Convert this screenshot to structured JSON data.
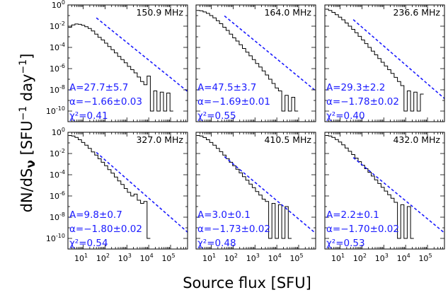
{
  "figure": {
    "xlabel": "Source flux [SFU]",
    "ylabel": "dN/dS_ν [SFU⁻¹ day⁻¹]",
    "ylabel_parts": {
      "a": "dN/dS",
      "nu": "ν",
      "b": " [SFU",
      "e1": "−1",
      "c": " day",
      "e2": "−1",
      "d": "]"
    },
    "x_tick_labels": [
      "10",
      "10",
      "10",
      "10",
      "10"
    ],
    "x_tick_exps": [
      "1",
      "2",
      "3",
      "4",
      "5"
    ],
    "y_tick_labels": [
      "10",
      "10",
      "10",
      "10",
      "10",
      "10"
    ],
    "y_tick_exps": [
      "0",
      "-2",
      "-4",
      "-6",
      "-8",
      "-10"
    ]
  },
  "chart_data": [
    {
      "type": "line",
      "frequency": "150.9 MHz",
      "fit_A": "A=27.7±5.7",
      "fit_alpha": "α=−1.66±0.03",
      "fit_chi2": "χ²=0.41",
      "alpha": -1.66,
      "amp": 27.7,
      "xlim": [
        2,
        600000
      ],
      "ylim": [
        1e-11,
        1
      ],
      "xscale": "log",
      "yscale": "log",
      "hist": [
        [
          2.5,
          0.008
        ],
        [
          3.5,
          0.013
        ],
        [
          5,
          0.016
        ],
        [
          7,
          0.015
        ],
        [
          10,
          0.012
        ],
        [
          14,
          0.009
        ],
        [
          20,
          0.006
        ],
        [
          28,
          0.0035
        ],
        [
          40,
          0.0018
        ],
        [
          56,
          0.0009
        ],
        [
          80,
          0.0005
        ],
        [
          112,
          0.00025
        ],
        [
          158,
          0.00012
        ],
        [
          224,
          6e-05
        ],
        [
          316,
          3e-05
        ],
        [
          447,
          1.4e-05
        ],
        [
          631,
          7e-06
        ],
        [
          891,
          3.5e-06
        ],
        [
          1259,
          1.6e-06
        ],
        [
          1778,
          8e-07
        ],
        [
          2512,
          4e-07
        ],
        [
          3548,
          1.6e-07
        ],
        [
          5012,
          6e-08
        ],
        [
          7079,
          3e-08
        ],
        [
          10000,
          2e-07
        ],
        [
          14125,
          1e-10
        ],
        [
          19953,
          8e-09
        ],
        [
          28184,
          1e-10
        ],
        [
          39811,
          6e-09
        ],
        [
          56234,
          1e-10
        ],
        [
          79433,
          5e-09
        ],
        [
          112202,
          1e-10
        ]
      ]
    },
    {
      "type": "line",
      "frequency": "164.0 MHz",
      "fit_A": "A=47.5±3.7",
      "fit_alpha": "α=−1.69±0.01",
      "fit_chi2": "χ²=0.55",
      "alpha": -1.69,
      "amp": 47.5,
      "xlim": [
        2,
        600000
      ],
      "ylim": [
        1e-11,
        1
      ],
      "xscale": "log",
      "yscale": "log",
      "hist": [
        [
          2.5,
          0.3
        ],
        [
          3.5,
          0.28
        ],
        [
          5,
          0.22
        ],
        [
          7,
          0.16
        ],
        [
          10,
          0.1
        ],
        [
          14,
          0.06
        ],
        [
          20,
          0.033
        ],
        [
          28,
          0.017
        ],
        [
          40,
          0.008
        ],
        [
          56,
          0.004
        ],
        [
          80,
          0.0018
        ],
        [
          112,
          0.0008
        ],
        [
          158,
          0.0004
        ],
        [
          224,
          0.00018
        ],
        [
          316,
          8e-05
        ],
        [
          447,
          3.5e-05
        ],
        [
          631,
          1.6e-05
        ],
        [
          891,
          7e-06
        ],
        [
          1259,
          3e-06
        ],
        [
          1778,
          1.4e-06
        ],
        [
          2512,
          6e-07
        ],
        [
          3548,
          2.5e-07
        ],
        [
          5012,
          1e-07
        ],
        [
          7079,
          4e-08
        ],
        [
          10000,
          1.5e-08
        ],
        [
          14125,
          8e-09
        ],
        [
          19953,
          1e-10
        ],
        [
          28184,
          3e-09
        ],
        [
          39811,
          1e-10
        ],
        [
          56234,
          2e-09
        ],
        [
          79433,
          1e-10
        ]
      ]
    },
    {
      "type": "line",
      "frequency": "236.6 MHz",
      "fit_A": "A=29.3±2.2",
      "fit_alpha": "α=−1.78±0.02",
      "fit_chi2": "χ²=0.40",
      "alpha": -1.78,
      "amp": 29.3,
      "xlim": [
        2,
        600000
      ],
      "ylim": [
        1e-11,
        1
      ],
      "xscale": "log",
      "yscale": "log",
      "hist": [
        [
          2.5,
          0.4
        ],
        [
          3.5,
          0.3
        ],
        [
          5,
          0.2
        ],
        [
          7,
          0.12
        ],
        [
          10,
          0.07
        ],
        [
          14,
          0.04
        ],
        [
          20,
          0.02
        ],
        [
          28,
          0.01
        ],
        [
          40,
          0.005
        ],
        [
          56,
          0.0024
        ],
        [
          80,
          0.0011
        ],
        [
          112,
          0.0005
        ],
        [
          158,
          0.00023
        ],
        [
          224,
          0.0001
        ],
        [
          316,
          4.5e-05
        ],
        [
          447,
          2e-05
        ],
        [
          631,
          9e-06
        ],
        [
          891,
          4e-06
        ],
        [
          1259,
          1.8e-06
        ],
        [
          1778,
          8e-07
        ],
        [
          2512,
          3.5e-07
        ],
        [
          3548,
          1.5e-07
        ],
        [
          5012,
          6e-08
        ],
        [
          7079,
          2.5e-08
        ],
        [
          10000,
          1e-10
        ],
        [
          14125,
          8e-09
        ],
        [
          19953,
          1e-10
        ],
        [
          28184,
          6e-09
        ],
        [
          39811,
          1e-10
        ],
        [
          56234,
          4e-09
        ]
      ]
    },
    {
      "type": "line",
      "frequency": "327.0 MHz",
      "fit_A": "A=9.8±0.7",
      "fit_alpha": "α=−1.80±0.02",
      "fit_chi2": "χ²=0.54",
      "alpha": -1.8,
      "amp": 9.8,
      "xlim": [
        2,
        600000
      ],
      "ylim": [
        1e-11,
        1
      ],
      "xscale": "log",
      "yscale": "log",
      "hist": [
        [
          2.5,
          0.5
        ],
        [
          3.5,
          0.45
        ],
        [
          5,
          0.33
        ],
        [
          7,
          0.2
        ],
        [
          10,
          0.11
        ],
        [
          14,
          0.06
        ],
        [
          20,
          0.03
        ],
        [
          28,
          0.014
        ],
        [
          40,
          0.007
        ],
        [
          56,
          0.0032
        ],
        [
          80,
          0.0015
        ],
        [
          112,
          0.0007
        ],
        [
          158,
          0.0003
        ],
        [
          224,
          0.00014
        ],
        [
          316,
          6e-05
        ],
        [
          447,
          2.6e-05
        ],
        [
          631,
          1.2e-05
        ],
        [
          891,
          5e-06
        ],
        [
          1259,
          2.2e-06
        ],
        [
          1778,
          1e-06
        ],
        [
          2512,
          1.5e-06
        ],
        [
          3548,
          4e-07
        ],
        [
          5012,
          2e-07
        ],
        [
          7079,
          3e-07
        ],
        [
          10000,
          1e-10
        ]
      ]
    },
    {
      "type": "line",
      "frequency": "410.5 MHz",
      "fit_A": "A=3.0±0.1",
      "fit_alpha": "α=−1.73±0.02",
      "fit_chi2": "χ²=0.48",
      "alpha": -1.73,
      "amp": 3.0,
      "xlim": [
        2,
        600000
      ],
      "ylim": [
        1e-11,
        1
      ],
      "xscale": "log",
      "yscale": "log",
      "hist": [
        [
          2.5,
          0.5
        ],
        [
          3.5,
          0.45
        ],
        [
          5,
          0.32
        ],
        [
          7,
          0.2
        ],
        [
          10,
          0.11
        ],
        [
          14,
          0.06
        ],
        [
          20,
          0.03
        ],
        [
          28,
          0.015
        ],
        [
          40,
          0.007
        ],
        [
          56,
          0.0033
        ],
        [
          80,
          0.0015
        ],
        [
          112,
          0.0007
        ],
        [
          158,
          0.00033
        ],
        [
          224,
          0.00015
        ],
        [
          316,
          6.5e-05
        ],
        [
          447,
          3e-05
        ],
        [
          631,
          1.3e-05
        ],
        [
          891,
          6e-06
        ],
        [
          1259,
          2.6e-06
        ],
        [
          1778,
          1.2e-06
        ],
        [
          2512,
          5e-07
        ],
        [
          3548,
          3e-07
        ],
        [
          5012,
          1e-10
        ],
        [
          7079,
          2e-07
        ],
        [
          10000,
          1e-10
        ],
        [
          14125,
          1.5e-07
        ],
        [
          19953,
          1e-10
        ],
        [
          28184,
          1e-07
        ],
        [
          39811,
          1e-10
        ]
      ]
    },
    {
      "type": "line",
      "frequency": "432.0 MHz",
      "fit_A": "A=2.2±0.1",
      "fit_alpha": "α=−1.70±0.02",
      "fit_chi2": "χ²=0.53",
      "alpha": -1.7,
      "amp": 2.2,
      "xlim": [
        2,
        600000
      ],
      "ylim": [
        1e-11,
        1
      ],
      "xscale": "log",
      "yscale": "log",
      "hist": [
        [
          2.5,
          0.5
        ],
        [
          3.5,
          0.45
        ],
        [
          5,
          0.33
        ],
        [
          7,
          0.21
        ],
        [
          10,
          0.12
        ],
        [
          14,
          0.065
        ],
        [
          20,
          0.033
        ],
        [
          28,
          0.016
        ],
        [
          40,
          0.008
        ],
        [
          56,
          0.0037
        ],
        [
          80,
          0.0017
        ],
        [
          112,
          0.0008
        ],
        [
          158,
          0.00037
        ],
        [
          224,
          0.00017
        ],
        [
          316,
          7.5e-05
        ],
        [
          447,
          3.3e-05
        ],
        [
          631,
          1.5e-05
        ],
        [
          891,
          6.5e-06
        ],
        [
          1259,
          2.9e-06
        ],
        [
          1778,
          1.3e-06
        ],
        [
          2512,
          6e-07
        ],
        [
          3548,
          2.5e-07
        ],
        [
          5012,
          1e-10
        ],
        [
          7079,
          1.5e-07
        ],
        [
          10000,
          1e-10
        ],
        [
          14125,
          1e-07
        ],
        [
          19953,
          1e-10
        ]
      ]
    }
  ]
}
